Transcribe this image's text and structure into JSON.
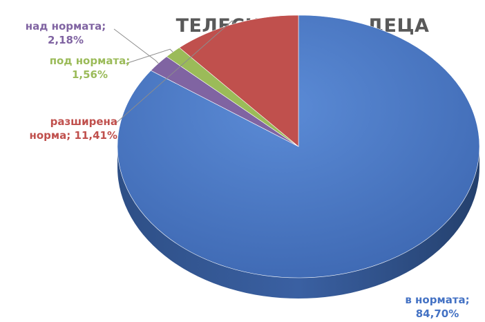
{
  "chart_data": {
    "type": "pie",
    "title": "ТЕЛЕСНА МАСА - ДЕЦА",
    "slices": [
      {
        "category": "в нормата",
        "value": 84.7,
        "label": "84,70%",
        "color": "#4472C4"
      },
      {
        "category": "над нормата",
        "value": 2.18,
        "label": "2,18%",
        "color": "#8064A2"
      },
      {
        "category": "под нормата",
        "value": 1.56,
        "label": "1,56%",
        "color": "#9BBB59"
      },
      {
        "category": "разширена норма",
        "value": 11.41,
        "label": "11,41%",
        "color": "#C0504D"
      }
    ],
    "legend": "none",
    "style": "3d"
  },
  "labels": {
    "normal": {
      "line1": "в нормата;",
      "line2": "84,70%"
    },
    "above": {
      "line1": "над нормата;",
      "line2": "2,18%"
    },
    "below": {
      "line1": "под нормата;",
      "line2": "1,56%"
    },
    "extended": {
      "line1": "разширена",
      "line2": "норма; 11,41%"
    }
  }
}
